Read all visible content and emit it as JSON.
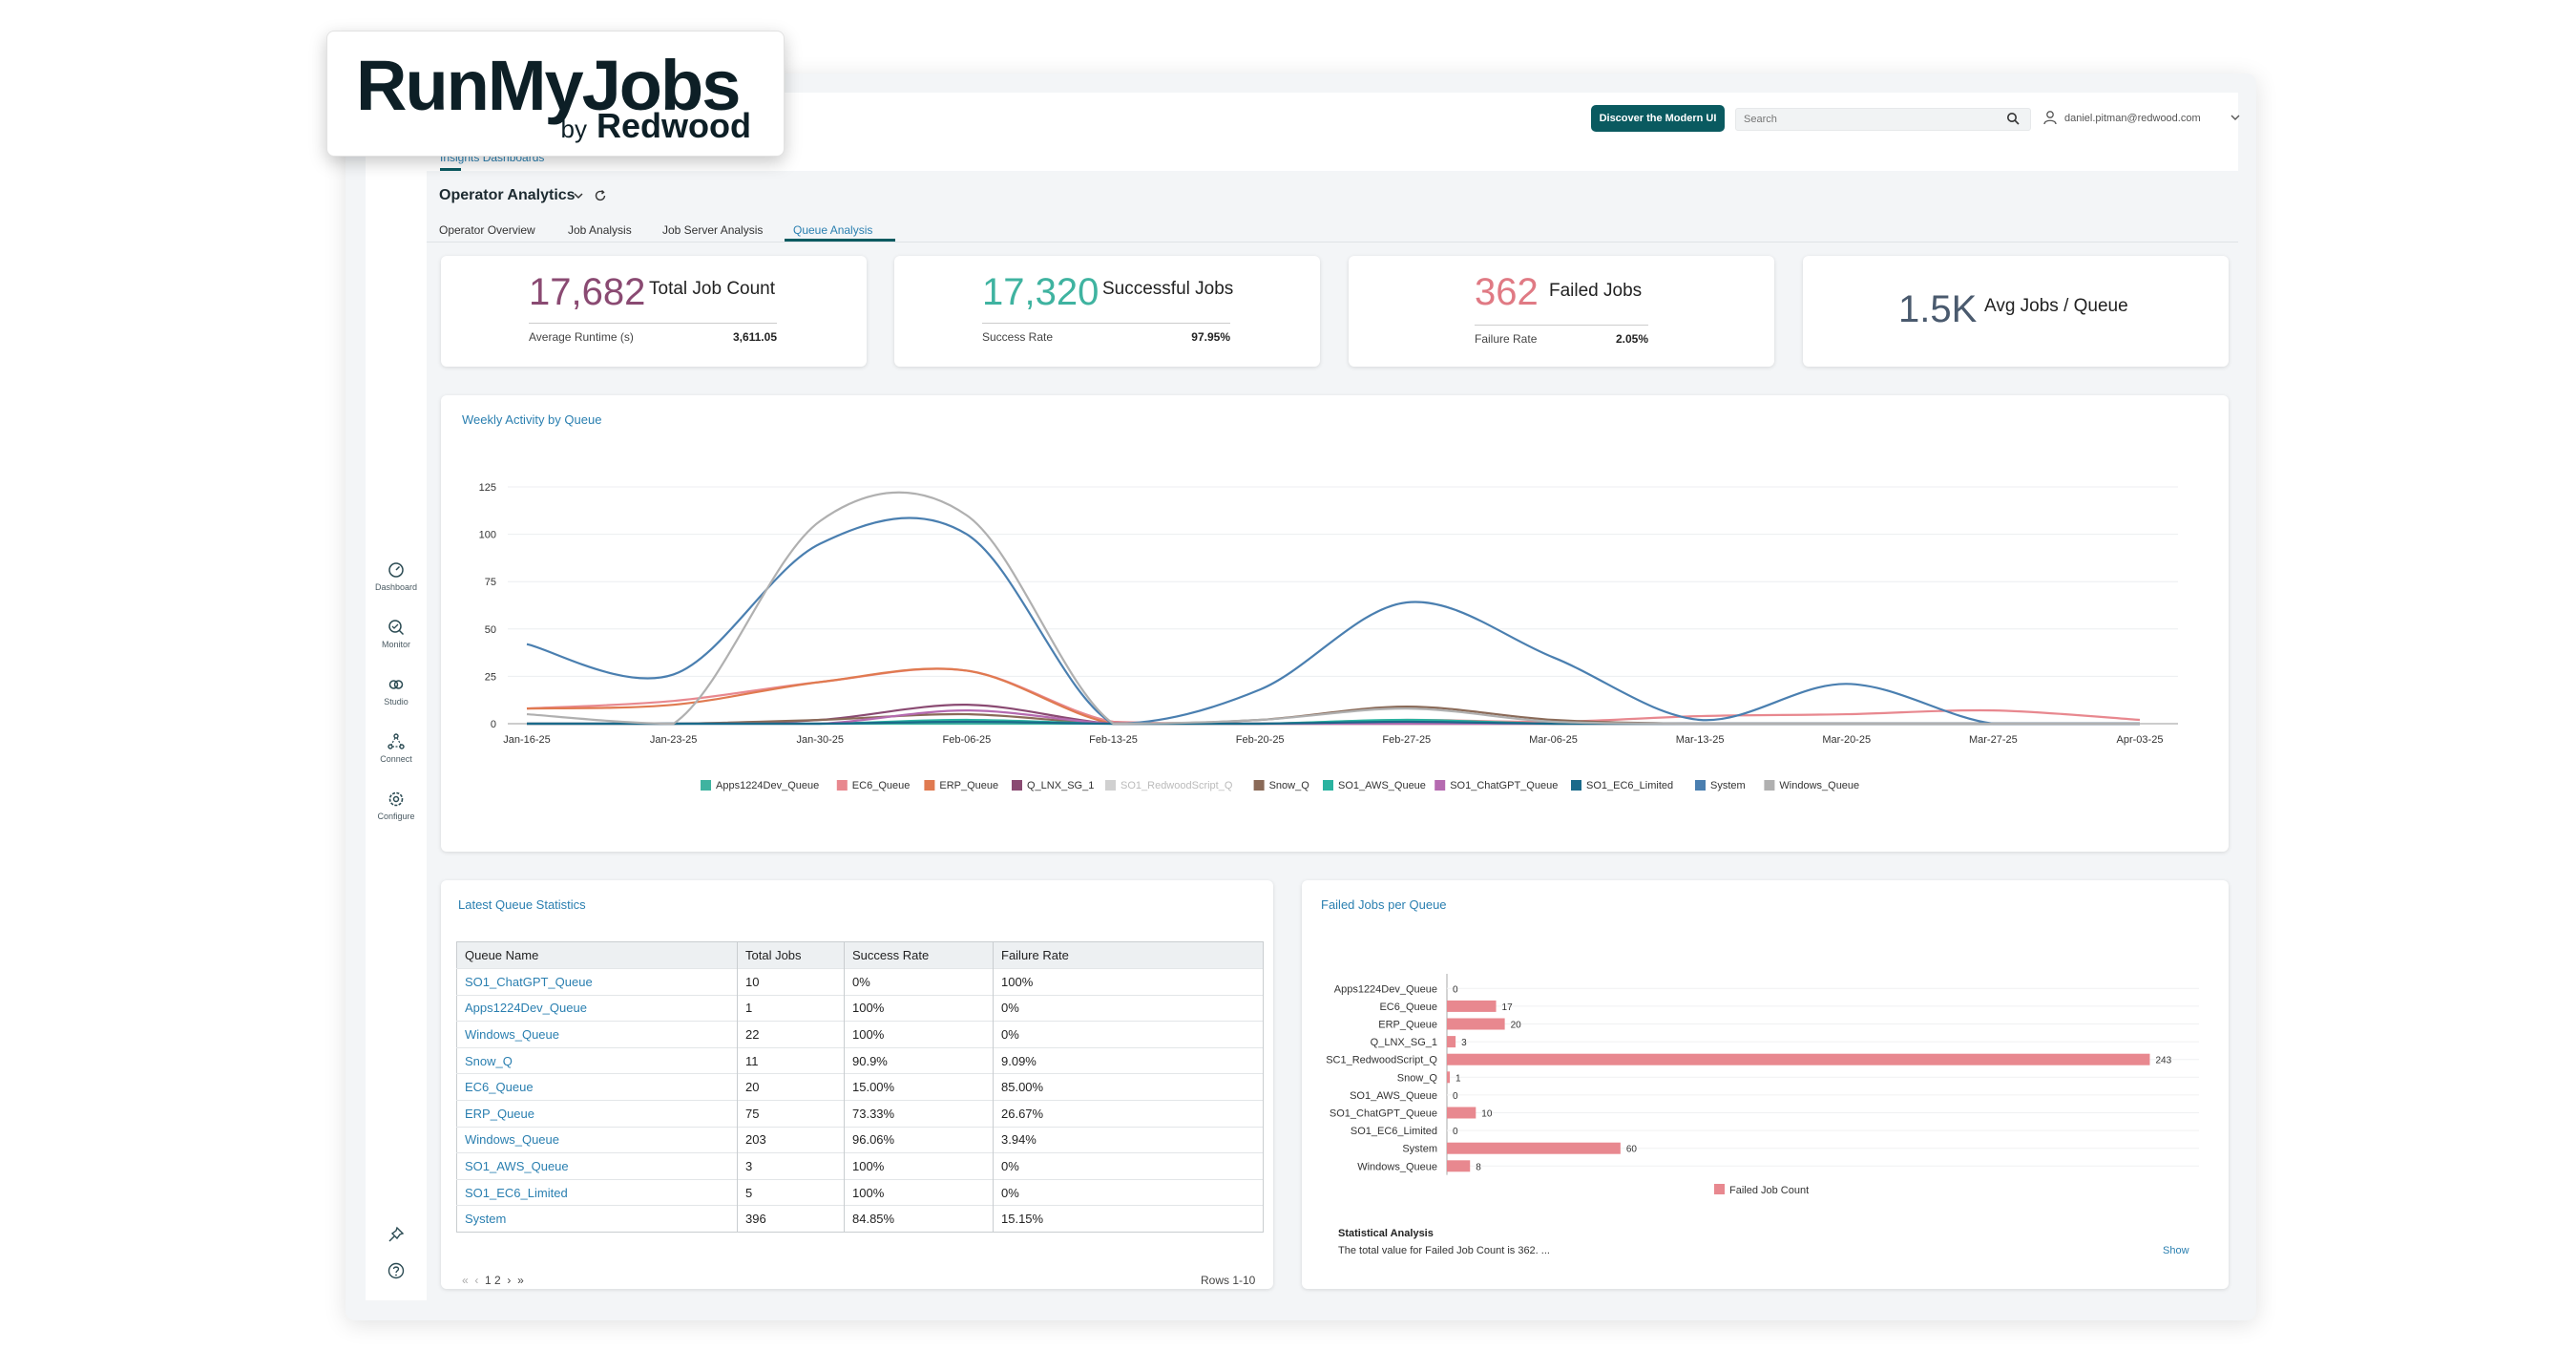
{
  "logo": {
    "main": "RunMyJobs",
    "by": "by",
    "brand": "Redwood"
  },
  "header": {
    "discover_label": "Discover the Modern UI",
    "search_placeholder": "Search",
    "user_email": "daniel.pitman@redwood.com"
  },
  "sidebar": {
    "items": [
      {
        "label": "Dashboard",
        "icon": "dashboard-icon"
      },
      {
        "label": "Monitor",
        "icon": "monitor-icon"
      },
      {
        "label": "Studio",
        "icon": "studio-icon"
      },
      {
        "label": "Connect",
        "icon": "connect-icon"
      },
      {
        "label": "Configure",
        "icon": "configure-icon"
      }
    ],
    "bottom_icons": [
      "pin-icon",
      "help-icon"
    ]
  },
  "breadcrumb": "Insights Dashboards",
  "page_title": "Operator Analytics",
  "tabs": [
    "Operator Overview",
    "Job Analysis",
    "Job Server Analysis",
    "Queue Analysis"
  ],
  "active_tab": "Queue Analysis",
  "kpis": [
    {
      "value": "17,682",
      "label": "Total Job Count",
      "sub_label": "Average Runtime (s)",
      "sub_value": "3,611.05",
      "color": "#8a4a72"
    },
    {
      "value": "17,320",
      "label": "Successful Jobs",
      "sub_label": "Success Rate",
      "sub_value": "97.95%",
      "color": "#3fb3a0"
    },
    {
      "value": "362",
      "label": "Failed Jobs",
      "sub_label": "Failure Rate",
      "sub_value": "2.05%",
      "color": "#e07a84"
    },
    {
      "value": "1.5K",
      "label": "Avg Jobs / Queue",
      "color": "#4a5a6e"
    }
  ],
  "weekly_chart_title": "Weekly Activity by Queue",
  "failed_chart_title": "Failed Jobs per Queue",
  "table_title": "Latest Queue Statistics",
  "table": {
    "headers": [
      "Queue Name",
      "Total Jobs",
      "Success Rate",
      "Failure Rate"
    ],
    "rows": [
      [
        "SO1_ChatGPT_Queue",
        "10",
        "0%",
        "100%"
      ],
      [
        "Apps1224Dev_Queue",
        "1",
        "100%",
        "0%"
      ],
      [
        "Windows_Queue",
        "22",
        "100%",
        "0%"
      ],
      [
        "Snow_Q",
        "11",
        "90.9%",
        "9.09%"
      ],
      [
        "EC6_Queue",
        "20",
        "15.00%",
        "85.00%"
      ],
      [
        "ERP_Queue",
        "75",
        "73.33%",
        "26.67%"
      ],
      [
        "Windows_Queue",
        "203",
        "96.06%",
        "3.94%"
      ],
      [
        "SO1_AWS_Queue",
        "3",
        "100%",
        "0%"
      ],
      [
        "SO1_EC6_Limited",
        "5",
        "100%",
        "0%"
      ],
      [
        "System",
        "396",
        "84.85%",
        "15.15%"
      ]
    ]
  },
  "pager": {
    "first": "«",
    "prev": "‹",
    "pages": "1 2",
    "next": "›",
    "last": "»",
    "rows_info": "Rows 1-10"
  },
  "statistical": {
    "title": "Statistical Analysis",
    "text": "The total value for Failed Job Count is 362. ...",
    "show_label": "Show"
  },
  "chart_data": [
    {
      "type": "line",
      "title": "Weekly Activity by Queue",
      "x": [
        "Jan-16-25",
        "Jan-23-25",
        "Jan-30-25",
        "Feb-06-25",
        "Feb-13-25",
        "Feb-20-25",
        "Feb-27-25",
        "Mar-06-25",
        "Mar-13-25",
        "Mar-20-25",
        "Mar-27-25",
        "Apr-03-25"
      ],
      "ylim": [
        0,
        125
      ],
      "yticks": [
        0,
        25,
        50,
        75,
        100,
        125
      ],
      "legend_position": "bottom",
      "series": [
        {
          "name": "Apps1224Dev_Queue",
          "color": "#3fb3a0",
          "values": [
            0,
            0,
            0,
            0,
            0,
            0,
            0,
            0,
            0,
            0,
            0,
            0
          ]
        },
        {
          "name": "EC6_Queue",
          "color": "#e8888f",
          "values": [
            8,
            12,
            22,
            28,
            1,
            0,
            2,
            1,
            4,
            5,
            7,
            2
          ]
        },
        {
          "name": "ERP_Queue",
          "color": "#e07a50",
          "values": [
            8,
            10,
            22,
            28,
            0,
            0,
            0,
            0,
            0,
            0,
            0,
            0
          ]
        },
        {
          "name": "Q_LNX_SG_1",
          "color": "#8a4a72",
          "values": [
            0,
            0,
            2,
            10,
            0,
            0,
            0,
            0,
            0,
            0,
            0,
            0
          ]
        },
        {
          "name": "SO1_RedwoodScript_Q",
          "color": "#c8c8c8",
          "hidden": true,
          "values": [
            0,
            0,
            0,
            0,
            0,
            0,
            0,
            0,
            0,
            0,
            0,
            0
          ]
        },
        {
          "name": "Snow_Q",
          "color": "#8a6a58",
          "values": [
            0,
            0,
            2,
            5,
            0,
            2,
            9,
            2,
            0,
            0,
            0,
            0
          ]
        },
        {
          "name": "SO1_AWS_Queue",
          "color": "#2ab3a0",
          "values": [
            0,
            0,
            0,
            2,
            0,
            0,
            2,
            0,
            0,
            0,
            0,
            0
          ]
        },
        {
          "name": "SO1_ChatGPT_Queue",
          "color": "#b56ab0",
          "values": [
            0,
            0,
            0,
            7,
            0,
            0,
            0,
            0,
            0,
            0,
            0,
            0
          ]
        },
        {
          "name": "SO1_EC6_Limited",
          "color": "#1a6a8a",
          "values": [
            0,
            0,
            0,
            1,
            0,
            0,
            1,
            0,
            0,
            0,
            0,
            0
          ]
        },
        {
          "name": "System",
          "color": "#4a7fb0",
          "values": [
            42,
            26,
            95,
            100,
            0,
            18,
            64,
            35,
            2,
            21,
            0,
            0
          ]
        },
        {
          "name": "Windows_Queue",
          "color": "#b0b0b0",
          "values": [
            5,
            0,
            107,
            110,
            0,
            2,
            8,
            1,
            0,
            0,
            0,
            0
          ]
        }
      ]
    },
    {
      "type": "bar",
      "orientation": "horizontal",
      "title": "Failed Jobs per Queue",
      "categories": [
        "Apps1224Dev_Queue",
        "EC6_Queue",
        "ERP_Queue",
        "Q_LNX_SG_1",
        "SC1_RedwoodScript_Q",
        "Snow_Q",
        "SO1_AWS_Queue",
        "SO1_ChatGPT_Queue",
        "SO1_EC6_Limited",
        "System",
        "Windows_Queue"
      ],
      "series": [
        {
          "name": "Failed Job Count",
          "color": "#e8888f",
          "values": [
            0,
            17,
            20,
            3,
            243,
            1,
            0,
            10,
            0,
            60,
            8
          ]
        }
      ],
      "xlim": [
        0,
        260
      ],
      "legend_position": "bottom"
    }
  ]
}
